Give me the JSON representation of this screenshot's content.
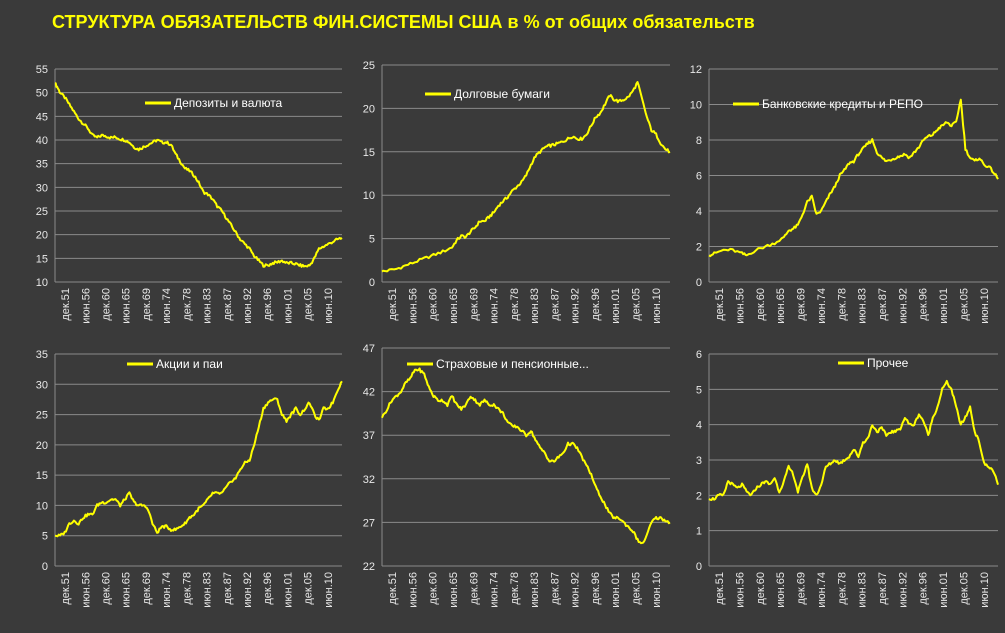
{
  "title": "СТРУКТУРА ОБЯЗАТЕЛЬСТВ ФИН.СИСТЕМЫ США в % от общих обязательств",
  "colors": {
    "background": "#3a3a3a",
    "line": "#ffff00",
    "grid": "#8a8a8a",
    "text": "#e8e8e8",
    "title": "#ffff00"
  },
  "chart_data": [
    {
      "type": "line",
      "title": "Депозиты и валюта",
      "legend": "top-center",
      "ylim": [
        10,
        55
      ],
      "yticks": [
        10,
        15,
        20,
        25,
        30,
        35,
        40,
        45,
        50,
        55
      ],
      "categories": [
        "дек.51",
        "июн.56",
        "дек.60",
        "июн.65",
        "дек.69",
        "июн.74",
        "дек.78",
        "июн.83",
        "дек.87",
        "июн.92",
        "дек.96",
        "июн.01",
        "дек.05",
        "июн.10"
      ],
      "x": [
        1951.9,
        1952.5,
        1953,
        1954,
        1955,
        1956,
        1957,
        1958,
        1959,
        1960,
        1961,
        1962,
        1963,
        1964,
        1965,
        1966,
        1967,
        1968,
        1969,
        1970,
        1971,
        1972,
        1973,
        1974,
        1975,
        1976,
        1977,
        1978,
        1979,
        1980,
        1981,
        1982,
        1983,
        1984,
        1985,
        1986,
        1987,
        1988,
        1989,
        1990,
        1991,
        1992,
        1993,
        1994,
        1995,
        1996,
        1997,
        1998,
        1999,
        2000,
        2001,
        2002,
        2003,
        2004,
        2005,
        2006,
        2007,
        2008,
        2009,
        2010,
        2011,
        2012,
        2013,
        2014
      ],
      "values": [
        52,
        51,
        50,
        49,
        47.5,
        46,
        44.5,
        43.5,
        42.5,
        41,
        40.5,
        41,
        40.8,
        40.5,
        40.6,
        40.2,
        40,
        39.5,
        38.5,
        38,
        38.5,
        39,
        39.5,
        40,
        39.5,
        39.5,
        39,
        37,
        35.5,
        34,
        33.5,
        32.5,
        31,
        29,
        28.5,
        27.5,
        26,
        25,
        23.5,
        22,
        20.5,
        19,
        18,
        17,
        15.5,
        14.5,
        13.5,
        13.5,
        14,
        14.2,
        14.5,
        14,
        14,
        13.8,
        13.5,
        13.3,
        13.5,
        15,
        17,
        17.5,
        18,
        18.5,
        19,
        19.3
      ]
    },
    {
      "type": "line",
      "title": "Долговые бумаги",
      "legend": "top-center",
      "ylim": [
        0,
        25
      ],
      "yticks": [
        0,
        5,
        10,
        15,
        20,
        25
      ],
      "categories": [
        "дек.51",
        "июн.56",
        "дек.60",
        "июн.65",
        "дек.69",
        "июн.74",
        "дек.78",
        "июн.83",
        "дек.87",
        "июн.92",
        "дек.96",
        "июн.01",
        "дек.05",
        "июн.10"
      ],
      "x": [
        1951.9,
        1953,
        1955,
        1957,
        1959,
        1961,
        1963,
        1965,
        1967,
        1968,
        1969,
        1970,
        1971,
        1972,
        1973,
        1974,
        1975,
        1976,
        1977,
        1978,
        1979,
        1980,
        1981,
        1982,
        1983,
        1984,
        1985,
        1986,
        1987,
        1988,
        1989,
        1990,
        1991,
        1992,
        1993,
        1994,
        1995,
        1996,
        1997,
        1998,
        1999,
        2000,
        2001,
        2002,
        2003,
        2004,
        2005,
        2006,
        2007,
        2008,
        2009,
        2010,
        2011,
        2012,
        2013,
        2014
      ],
      "values": [
        1.2,
        1.3,
        1.5,
        1.9,
        2.3,
        2.7,
        3.1,
        3.5,
        4,
        4.8,
        5.3,
        5.2,
        5.8,
        6.3,
        7,
        7,
        7.5,
        8,
        8.8,
        9.3,
        9.8,
        10.5,
        11,
        11.5,
        12.3,
        13.5,
        14.5,
        15,
        15.5,
        15.7,
        15.8,
        16,
        16.2,
        16.5,
        16.8,
        16.5,
        16.5,
        17,
        18,
        19,
        19.5,
        20.5,
        21.5,
        21,
        20.8,
        21,
        21.3,
        22,
        23,
        21,
        19,
        17.5,
        17,
        16,
        15.3,
        15
      ]
    },
    {
      "type": "line",
      "title": "Банковские кредиты и РЕПО",
      "legend": "top-center",
      "ylim": [
        0,
        12
      ],
      "yticks": [
        0,
        2,
        4,
        6,
        8,
        10,
        12
      ],
      "categories": [
        "дек.51",
        "июн.56",
        "дек.60",
        "июн.65",
        "дек.69",
        "июн.74",
        "дек.78",
        "июн.83",
        "дек.87",
        "июн.92",
        "дек.96",
        "июн.01",
        "дек.05",
        "июн.10"
      ],
      "x": [
        1951.9,
        1953,
        1955,
        1957,
        1959,
        1960,
        1962,
        1964,
        1966,
        1968,
        1969,
        1970,
        1971,
        1972,
        1973,
        1974,
        1975,
        1976,
        1977,
        1978,
        1979,
        1980,
        1981,
        1982,
        1983,
        1984,
        1985,
        1986,
        1987,
        1988,
        1989,
        1990,
        1991,
        1992,
        1993,
        1994,
        1995,
        1996,
        1997,
        1998,
        1999,
        2000,
        2001,
        2002,
        2003,
        2004,
        2005,
        2006,
        2007,
        2008,
        2009,
        2010,
        2011,
        2012,
        2013,
        2014
      ],
      "values": [
        1.5,
        1.6,
        1.8,
        1.8,
        1.6,
        1.5,
        1.8,
        2,
        2.2,
        2.5,
        2.9,
        3,
        3.2,
        3.8,
        4.5,
        4.8,
        3.8,
        4,
        4.5,
        5,
        5.4,
        6,
        6.3,
        6.7,
        6.8,
        7.2,
        7.5,
        7.8,
        8,
        7.3,
        7,
        6.8,
        6.9,
        7,
        7.1,
        7.2,
        7,
        7.3,
        7.6,
        8,
        8.2,
        8.3,
        8.6,
        8.8,
        9,
        8.8,
        9,
        10.3,
        7.5,
        7,
        6.8,
        7,
        6.6,
        6.5,
        6.2,
        5.8
      ]
    },
    {
      "type": "line",
      "title": "Акции и паи",
      "legend": "top-center",
      "ylim": [
        0,
        35
      ],
      "yticks": [
        0,
        5,
        10,
        15,
        20,
        25,
        30,
        35
      ],
      "categories": [
        "дек.51",
        "июн.56",
        "дек.60",
        "июн.65",
        "дек.69",
        "июн.74",
        "дек.78",
        "июн.83",
        "дек.87",
        "июн.92",
        "дек.96",
        "июн.01",
        "дек.05",
        "июн.10"
      ],
      "x": [
        1951.9,
        1953,
        1954,
        1955,
        1956,
        1957,
        1958,
        1959,
        1960,
        1961,
        1962,
        1963,
        1964,
        1965,
        1966,
        1967,
        1968,
        1969,
        1970,
        1971,
        1972,
        1973,
        1974,
        1975,
        1976,
        1977,
        1978,
        1979,
        1980,
        1981,
        1982,
        1983,
        1984,
        1985,
        1986,
        1987,
        1988,
        1989,
        1990,
        1991,
        1992,
        1993,
        1994,
        1995,
        1996,
        1997,
        1998,
        1999,
        2000,
        2001,
        2002,
        2003,
        2004,
        2005,
        2006,
        2007,
        2008,
        2009,
        2010,
        2011,
        2012,
        2013,
        2014
      ],
      "values": [
        5,
        5,
        5.5,
        7,
        7.5,
        7,
        8,
        8.5,
        8.5,
        10,
        10.5,
        10.5,
        11,
        11,
        10,
        11,
        12,
        10.5,
        10,
        10,
        9.5,
        7,
        5.5,
        6.5,
        6.5,
        6,
        6,
        6.5,
        7,
        8,
        8.5,
        9.5,
        10,
        11,
        12,
        12,
        12,
        13,
        14,
        14.5,
        16,
        17,
        17.5,
        20,
        23,
        26,
        27,
        27.5,
        27.5,
        25,
        24,
        25,
        26,
        25,
        26,
        27,
        25,
        24,
        26,
        26,
        27,
        29,
        30.5
      ]
    },
    {
      "type": "line",
      "title": "Страховые и пенсионные...",
      "legend": "top-center",
      "ylim": [
        22,
        47
      ],
      "yticks": [
        22,
        27,
        32,
        37,
        42,
        47
      ],
      "categories": [
        "дек.51",
        "июн.56",
        "дек.60",
        "июн.65",
        "дек.69",
        "июн.74",
        "дек.78",
        "июн.83",
        "дек.87",
        "июн.92",
        "дек.96",
        "июн.01",
        "дек.05",
        "июн.10"
      ],
      "x": [
        1951.9,
        1953,
        1954,
        1955,
        1956,
        1957,
        1958,
        1959,
        1960,
        1961,
        1962,
        1963,
        1964,
        1965,
        1966,
        1967,
        1968,
        1969,
        1970,
        1971,
        1972,
        1973,
        1974,
        1975,
        1976,
        1977,
        1978,
        1979,
        1980,
        1981,
        1982,
        1983,
        1984,
        1985,
        1986,
        1987,
        1988,
        1989,
        1990,
        1991,
        1992,
        1993,
        1994,
        1995,
        1996,
        1997,
        1998,
        1999,
        2000,
        2001,
        2002,
        2003,
        2004,
        2005,
        2006,
        2007,
        2008,
        2009,
        2010,
        2011,
        2012,
        2013,
        2014
      ],
      "values": [
        39,
        40,
        41,
        41.5,
        42,
        43,
        43.5,
        44.5,
        44.5,
        44,
        42.5,
        41.5,
        41,
        41,
        40.5,
        41.5,
        40.5,
        40,
        40.5,
        41.5,
        41,
        40.5,
        41,
        40.5,
        40.5,
        40,
        39.5,
        38.5,
        38,
        38,
        37.5,
        37,
        37.5,
        36.5,
        35.5,
        35,
        34,
        34,
        34.5,
        35,
        36,
        36,
        35.5,
        34.5,
        33.5,
        32.5,
        31,
        30,
        29,
        28,
        27.5,
        27.5,
        27,
        26.5,
        26,
        25,
        24.5,
        25.5,
        27,
        27.5,
        27.5,
        27.2,
        27
      ]
    },
    {
      "type": "line",
      "title": "Прочее",
      "legend": "top-center",
      "ylim": [
        0,
        6
      ],
      "yticks": [
        0,
        1,
        2,
        3,
        4,
        5,
        6
      ],
      "categories": [
        "дек.51",
        "июн.56",
        "дек.60",
        "июн.65",
        "дек.69",
        "июн.74",
        "дек.78",
        "июн.83",
        "дек.87",
        "июн.92",
        "дек.96",
        "июн.01",
        "дек.05",
        "июн.10"
      ],
      "x": [
        1951.9,
        1953,
        1954,
        1955,
        1956,
        1957,
        1958,
        1959,
        1960,
        1961,
        1962,
        1963,
        1964,
        1965,
        1966,
        1967,
        1968,
        1969,
        1970,
        1971,
        1972,
        1973,
        1974,
        1975,
        1976,
        1977,
        1978,
        1979,
        1980,
        1981,
        1982,
        1983,
        1984,
        1985,
        1986,
        1987,
        1988,
        1989,
        1990,
        1991,
        1992,
        1993,
        1994,
        1995,
        1996,
        1997,
        1998,
        1999,
        2000,
        2001,
        2002,
        2003,
        2004,
        2005,
        2006,
        2007,
        2008,
        2009,
        2010,
        2011,
        2012,
        2013,
        2014
      ],
      "values": [
        1.9,
        1.9,
        2,
        2,
        2.4,
        2.3,
        2.2,
        2.3,
        2.1,
        2,
        2.2,
        2.3,
        2.4,
        2.3,
        2.5,
        2.1,
        2.4,
        2.8,
        2.6,
        2.1,
        2.5,
        2.9,
        2.2,
        2,
        2.3,
        2.8,
        2.9,
        3,
        2.9,
        3,
        3.1,
        3.3,
        3.1,
        3.5,
        3.6,
        4,
        3.8,
        3.9,
        3.7,
        3.8,
        3.8,
        3.9,
        4.2,
        4,
        4,
        4.3,
        4.1,
        3.7,
        4.2,
        4.5,
        5,
        5.2,
        5,
        4.5,
        4,
        4.2,
        4.5,
        3.8,
        3.5,
        2.9,
        2.8,
        2.7,
        2.3
      ]
    }
  ]
}
